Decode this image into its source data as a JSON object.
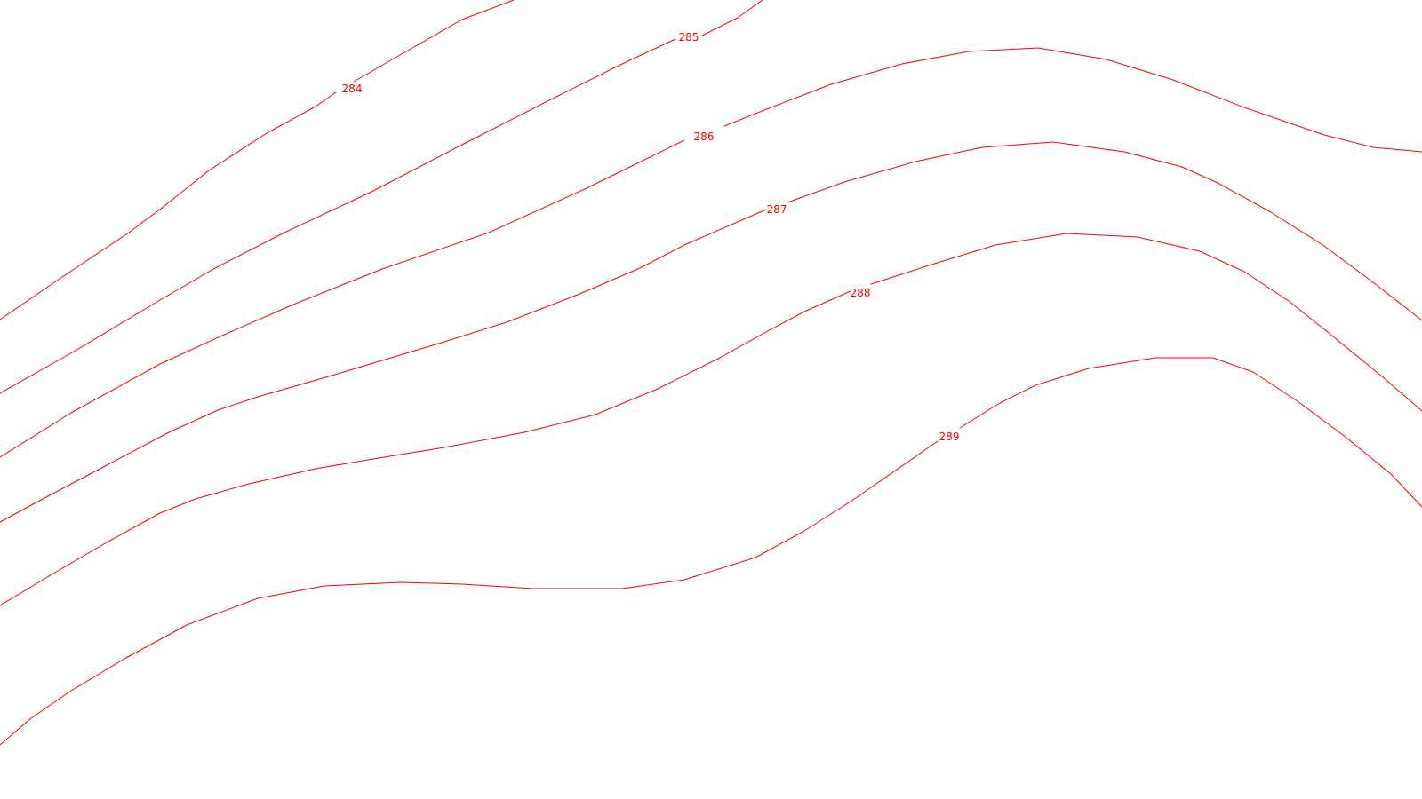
{
  "map": {
    "line_color": "#ff0000",
    "label_color": "#ff0000",
    "background_color": "#ffffff",
    "contours": [
      {
        "id": "284",
        "label": "284"
      },
      {
        "id": "285",
        "label": "285"
      },
      {
        "id": "286",
        "label": "286"
      },
      {
        "id": "287",
        "label": "287"
      },
      {
        "id": "288",
        "label": "288"
      },
      {
        "id": "289",
        "label": "289"
      }
    ]
  }
}
